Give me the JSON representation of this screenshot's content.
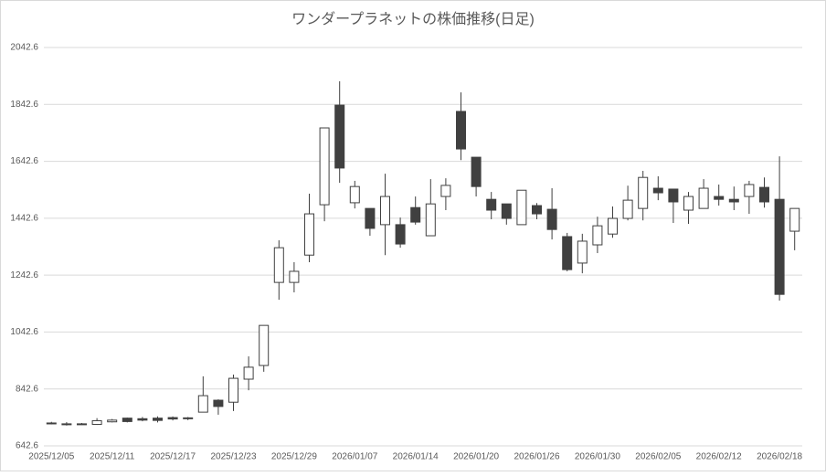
{
  "chart_data": {
    "type": "candlestick",
    "title": "ワンダープラネットの株価推移(日足)",
    "categories": [
      "2025/12/05",
      null,
      null,
      null,
      "2025/12/11",
      null,
      null,
      null,
      "2025/12/17",
      null,
      null,
      null,
      "2025/12/23",
      null,
      null,
      null,
      "2025/12/29",
      null,
      null,
      null,
      "2026/01/07",
      null,
      null,
      null,
      "2026/01/14",
      null,
      null,
      null,
      "2026/01/20",
      null,
      null,
      null,
      "2026/01/26",
      null,
      null,
      null,
      "2026/01/30",
      null,
      null,
      null,
      "2026/02/05",
      null,
      null,
      null,
      "2026/02/12",
      null,
      null,
      null,
      "2026/02/18",
      null
    ],
    "open": [
      720,
      717,
      718,
      718,
      727,
      740,
      738,
      740,
      742,
      741,
      761,
      803,
      796,
      877,
      925,
      1217,
      1217,
      1313,
      1490,
      1840,
      1497,
      1477,
      1420,
      1420,
      1480,
      1381,
      1519,
      1818,
      1657,
      1509,
      1493,
      1420,
      1487,
      1474,
      1378,
      1285,
      1349,
      1387,
      1442,
      1477,
      1548,
      1545,
      1471,
      1477,
      1519,
      1509,
      1519,
      1551,
      1509,
      1397
    ],
    "high": [
      727,
      726,
      723,
      740,
      737,
      742,
      744,
      746,
      746,
      744,
      887,
      806,
      893,
      957,
      1066,
      1365,
      1288,
      1529,
      1760,
      1924,
      1574,
      1477,
      1599,
      1445,
      1519,
      1580,
      1583,
      1885,
      1657,
      1535,
      1493,
      1541,
      1496,
      1548,
      1391,
      1388,
      1448,
      1484,
      1557,
      1609,
      1590,
      1545,
      1535,
      1580,
      1561,
      1554,
      1574,
      1586,
      1660,
      1477
    ],
    "low": [
      718,
      714,
      716,
      716,
      725,
      725,
      729,
      725,
      732,
      733,
      761,
      752,
      765,
      838,
      903,
      1156,
      1182,
      1288,
      1432,
      1567,
      1477,
      1381,
      1313,
      1339,
      1420,
      1381,
      1471,
      1647,
      1519,
      1439,
      1420,
      1420,
      1439,
      1368,
      1256,
      1249,
      1320,
      1374,
      1435,
      1435,
      1506,
      1426,
      1423,
      1477,
      1487,
      1471,
      1458,
      1480,
      1153,
      1330
    ],
    "close": [
      723,
      720,
      720,
      731,
      733,
      728,
      733,
      732,
      737,
      739,
      819,
      781,
      880,
      919,
      1066,
      1339,
      1256,
      1458,
      1760,
      1619,
      1554,
      1407,
      1519,
      1352,
      1429,
      1493,
      1558,
      1686,
      1554,
      1471,
      1442,
      1541,
      1458,
      1403,
      1262,
      1362,
      1416,
      1442,
      1506,
      1586,
      1532,
      1500,
      1519,
      1548,
      1509,
      1500,
      1561,
      1500,
      1175,
      1477
    ],
    "up_color": "#ffffff",
    "down_color": "#404040",
    "ylim": [
      642.6,
      2042.6
    ],
    "yticks": [
      642.6,
      842.6,
      1042.6,
      1242.6,
      1442.6,
      1642.6,
      1842.6,
      2042.6
    ],
    "grid": true
  }
}
